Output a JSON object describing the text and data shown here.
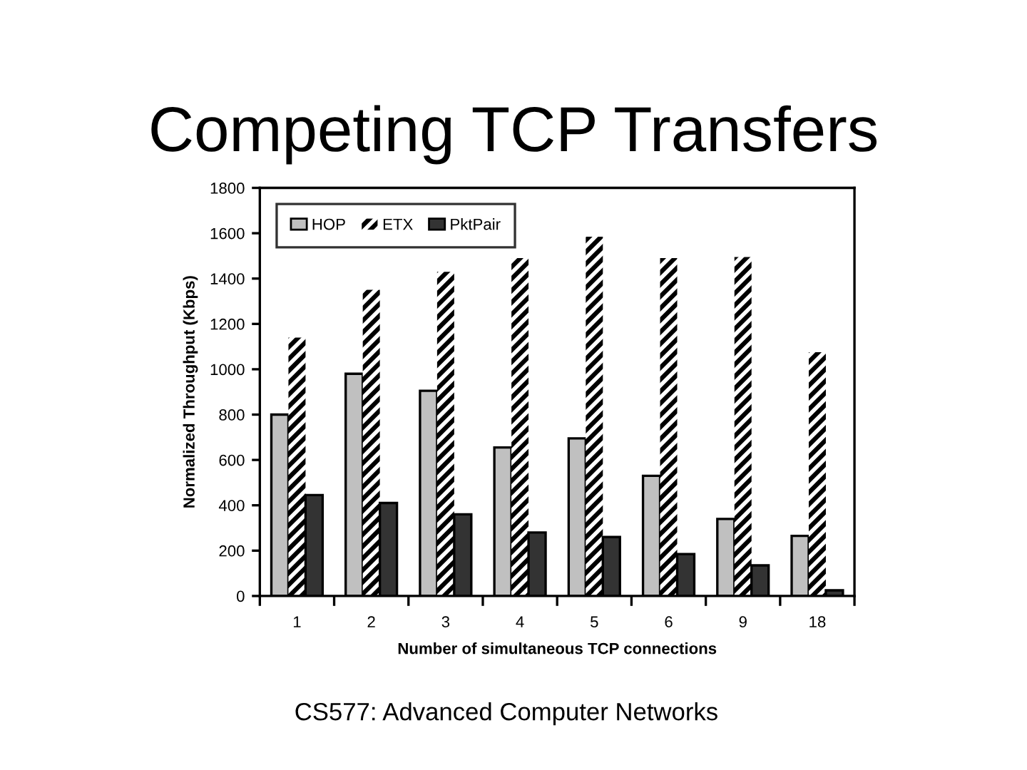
{
  "chart_data": {
    "type": "bar",
    "title": "Competing TCP Transfers",
    "xlabel": "Number of simultaneous TCP connections",
    "ylabel": "Normalized Throughput (Kbps)",
    "categories": [
      "1",
      "2",
      "3",
      "4",
      "5",
      "6",
      "9",
      "18"
    ],
    "series": [
      {
        "name": "HOP",
        "color": "#c0c0c0",
        "values": [
          800,
          980,
          905,
          655,
          695,
          530,
          340,
          265
        ]
      },
      {
        "name": "ETX",
        "color": "#000000",
        "values": [
          1140,
          1350,
          1430,
          1490,
          1585,
          1490,
          1495,
          1075
        ]
      },
      {
        "name": "PktPair",
        "color": "#333333",
        "values": [
          445,
          410,
          360,
          280,
          260,
          185,
          135,
          25
        ]
      }
    ],
    "ylim": [
      0,
      1800
    ],
    "yticks": [
      0,
      200,
      400,
      600,
      800,
      1000,
      1200,
      1400,
      1600,
      1800
    ],
    "grid": false,
    "legend": "top left",
    "annotations": [
      "CS577: Advanced Computer Networks"
    ]
  }
}
